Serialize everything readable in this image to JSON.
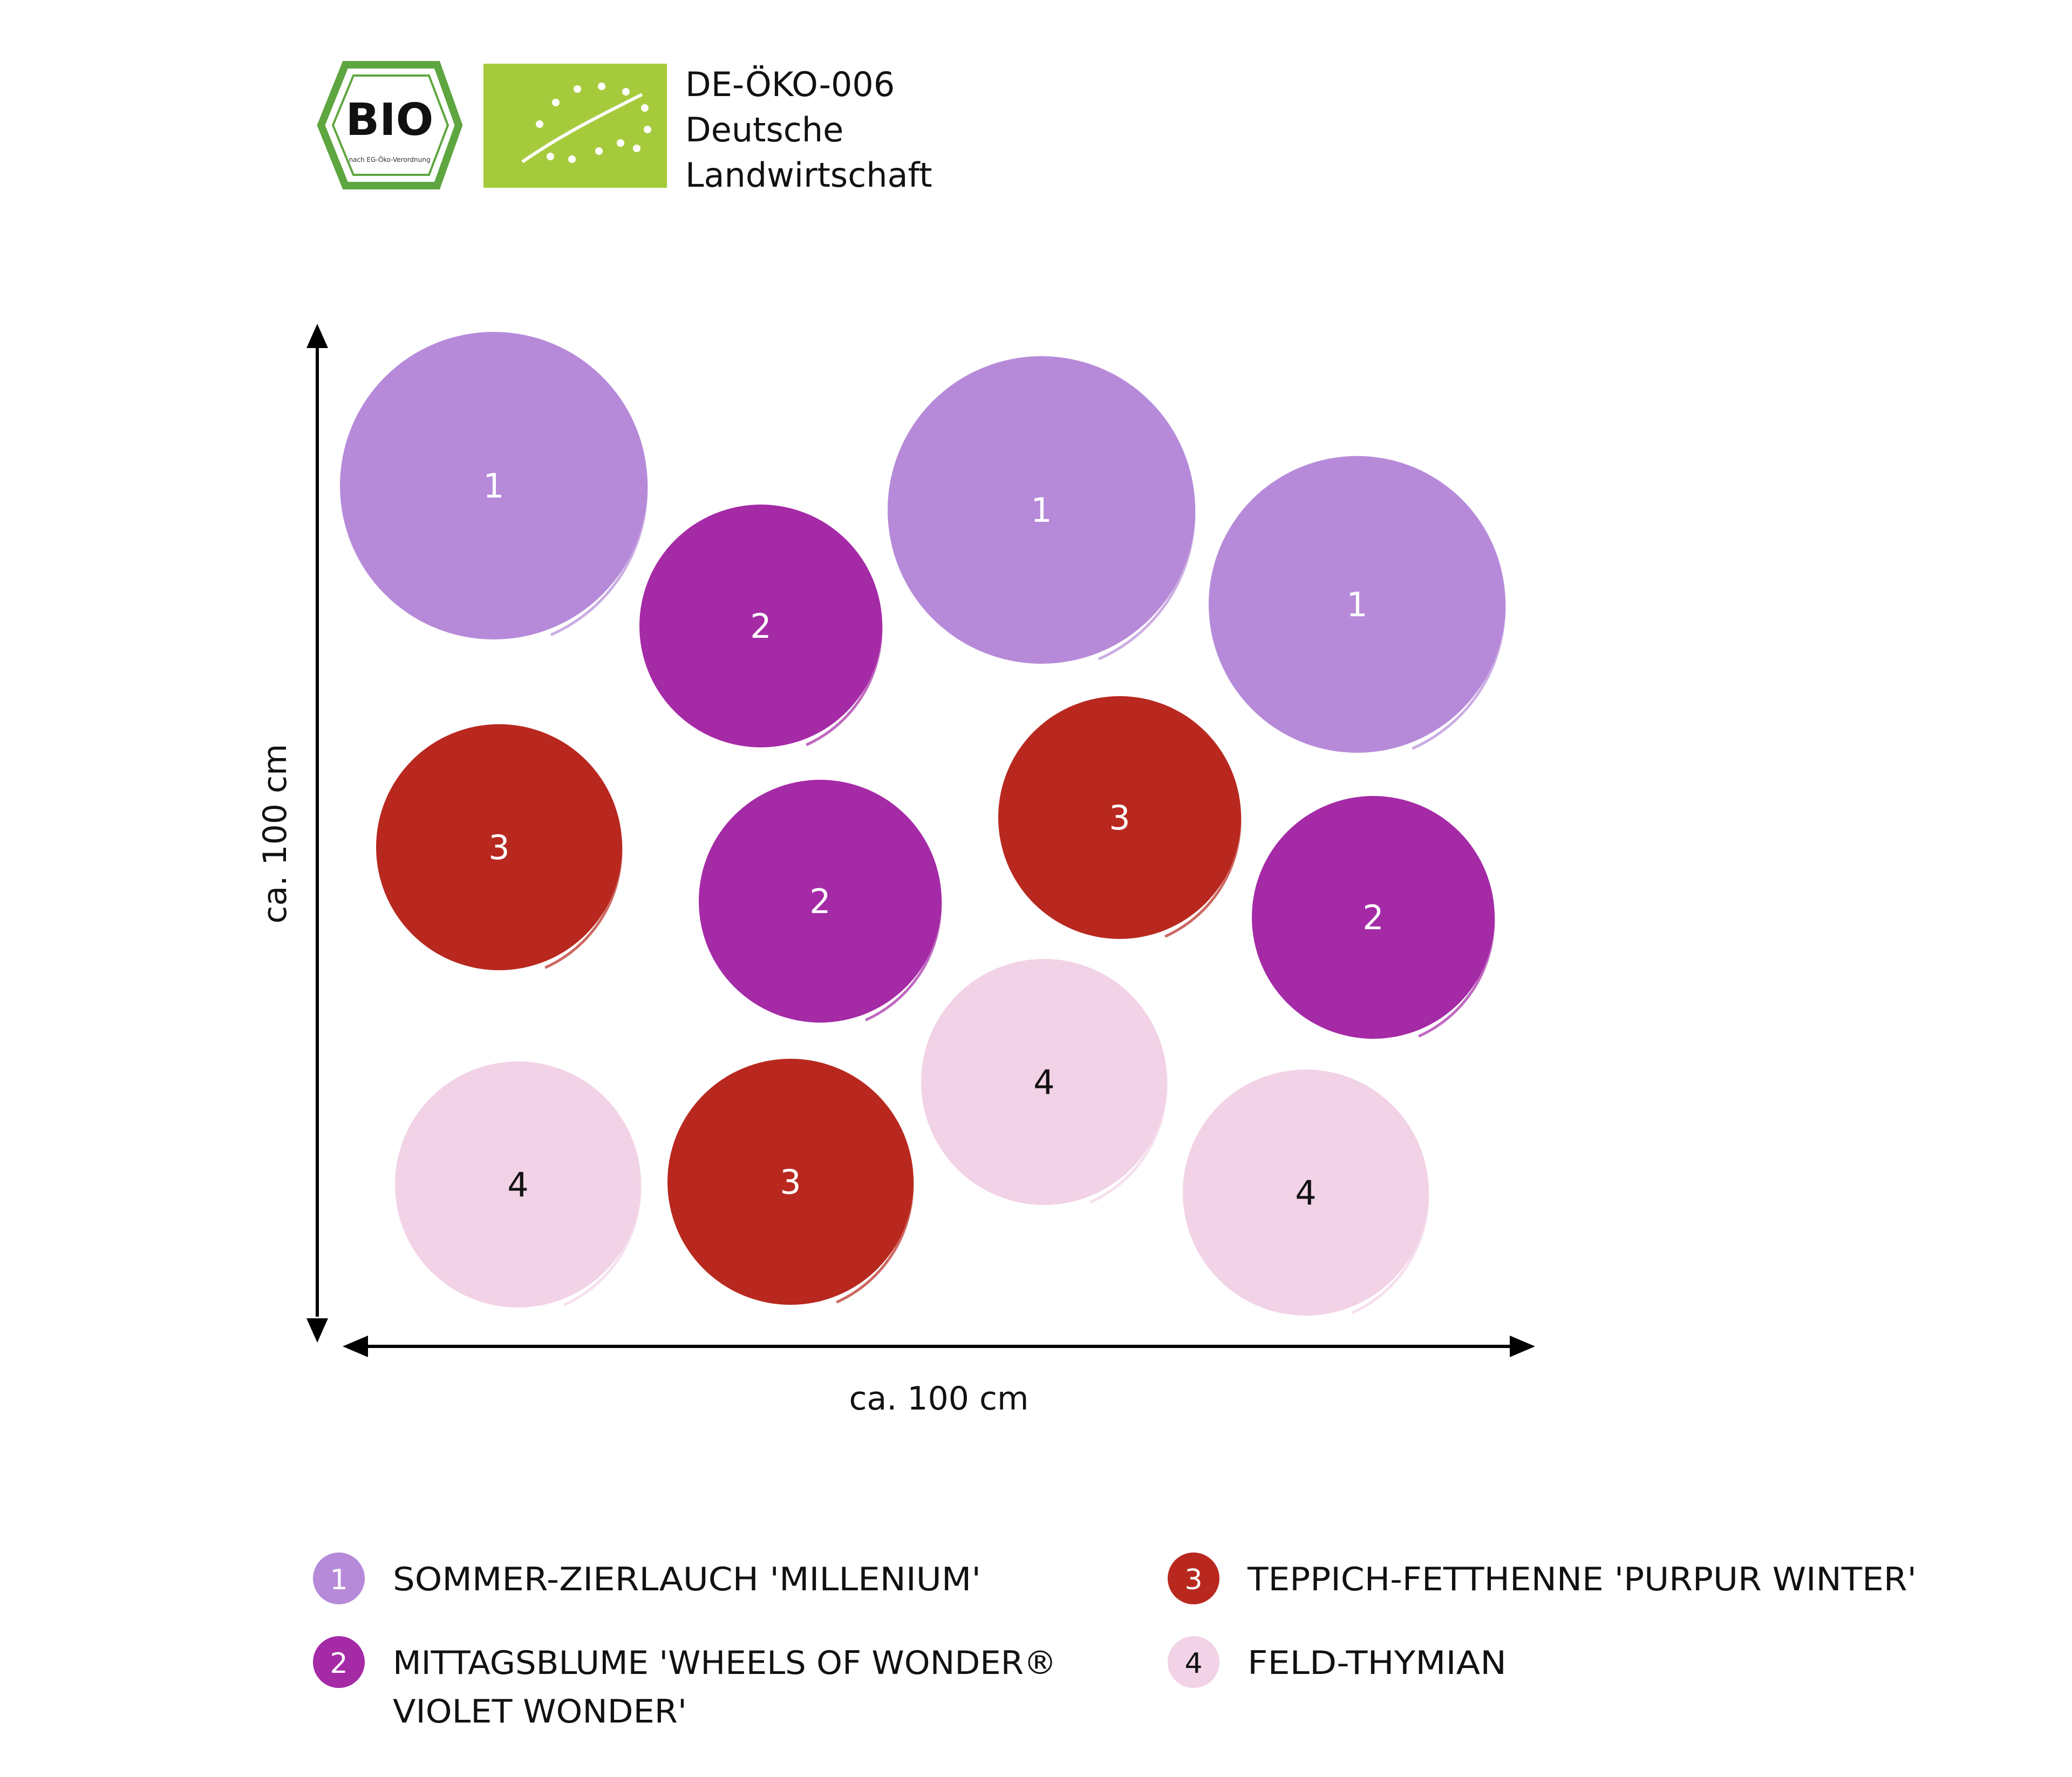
{
  "certification": {
    "bio_logo_text": "BIO",
    "bio_logo_small": "nach EG-Öko-Verordnung",
    "code": "DE-ÖKO-006",
    "origin_line1": "Deutsche",
    "origin_line2": "Landwirtschaft"
  },
  "dimensions": {
    "vertical_label": "ca. 100 cm",
    "horizontal_label": "ca. 100 cm"
  },
  "colors": {
    "1": "#b68ad9",
    "2": "#a52aa6",
    "3": "#b8281f",
    "4": "#f2d2e6",
    "eu_green": "#a5cb3c",
    "bio_green": "#5ea640",
    "arrow": "#000000"
  },
  "plants": [
    {
      "number": "1"
    },
    {
      "number": "2"
    },
    {
      "number": "1"
    },
    {
      "number": "1"
    },
    {
      "number": "3"
    },
    {
      "number": "2"
    },
    {
      "number": "3"
    },
    {
      "number": "2"
    },
    {
      "number": "4"
    },
    {
      "number": "3"
    },
    {
      "number": "4"
    },
    {
      "number": "4"
    }
  ],
  "legend": [
    {
      "number": "1",
      "name": "SOMMER-ZIERLAUCH 'MILLENIUM'",
      "name_line2": ""
    },
    {
      "number": "2",
      "name": "MITTAGSBLUME 'WHEELS OF WONDER®",
      "name_line2": "VIOLET WONDER'"
    },
    {
      "number": "3",
      "name": "TEPPICH-FETTHENNE 'PURPUR WINTER'",
      "name_line2": ""
    },
    {
      "number": "4",
      "name": "FELD-THYMIAN",
      "name_line2": ""
    }
  ]
}
